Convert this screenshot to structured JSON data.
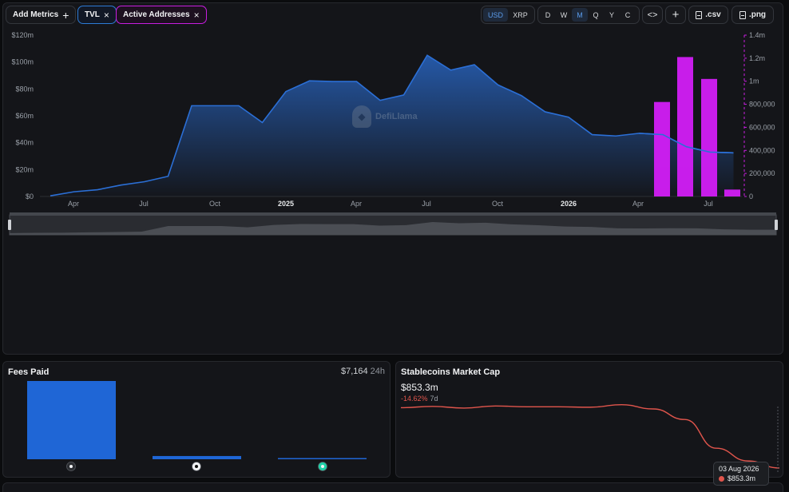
{
  "toolbar": {
    "add_metrics_label": "Add Metrics",
    "tvl_label": "TVL",
    "active_addresses_label": "Active Addresses",
    "currencies": [
      "USD",
      "XRP"
    ],
    "active_currency": "USD",
    "periods": [
      "D",
      "W",
      "M",
      "Q",
      "Y",
      "C"
    ],
    "active_period": "M",
    "embed_icon": "code-icon",
    "csv_label": ".csv",
    "png_label": ".png"
  },
  "watermark": "DefiLlama",
  "chart_data": {
    "type": "line",
    "left_axis_ticks": [
      "$0",
      "$20m",
      "$40m",
      "$60m",
      "$80m",
      "$100m",
      "$120m"
    ],
    "left_ylim": [
      0,
      120
    ],
    "right_axis_ticks": [
      "0",
      "200,000",
      "400,000",
      "600,000",
      "800,000",
      "1m",
      "1.2m",
      "1.4m"
    ],
    "right_ylim": [
      0,
      1400000
    ],
    "x_ticks": [
      "Apr",
      "Jul",
      "Oct",
      "2025",
      "Apr",
      "Jul",
      "Oct",
      "2026",
      "Apr",
      "Jul"
    ],
    "x_ticks_bold": [
      false,
      false,
      false,
      true,
      false,
      false,
      false,
      true,
      false,
      false
    ],
    "colors": {
      "tvl": "#2b6fd6",
      "active_addresses": "#d21ef5"
    },
    "series": [
      {
        "name": "TVL",
        "kind": "area",
        "axis": "left",
        "values": [
          0.5,
          3.5,
          5,
          8.5,
          11,
          15,
          67.5,
          67.5,
          67.5,
          55,
          78,
          86,
          85.5,
          85.5,
          71.5,
          75.5,
          105,
          94,
          98,
          83,
          75,
          63,
          59,
          46,
          45,
          47,
          46,
          37,
          33,
          32.5
        ]
      },
      {
        "name": "Active Addresses",
        "kind": "bar",
        "axis": "right",
        "values": [
          820000,
          1210000,
          1020000,
          60000
        ]
      }
    ]
  },
  "fees_card": {
    "title": "Fees Paid",
    "total": "$7,164",
    "period": "24h",
    "bar_values": [
      7000,
      290,
      50
    ],
    "bar_color": "#1f66d6",
    "icons": [
      "chain-a-icon",
      "chain-b-icon",
      "chain-c-icon"
    ]
  },
  "stablecoins_card": {
    "title": "Stablecoins Market Cap",
    "value": "$853.3m",
    "change": "-14.62%",
    "change_period": "7d",
    "line_color": "#e0554c",
    "values": [
      996,
      999,
      995,
      1000,
      998,
      998,
      997,
      1003,
      993,
      968,
      900,
      870,
      853.3
    ],
    "tooltip": {
      "date": "03 Aug 2026",
      "value": "$853.3m"
    }
  }
}
